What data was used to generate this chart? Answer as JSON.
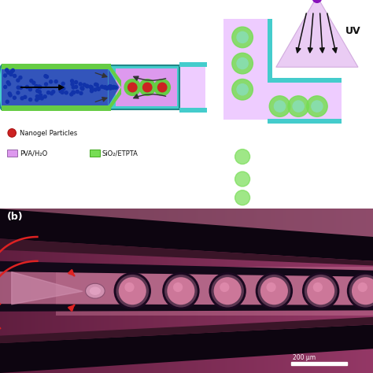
{
  "bg_color": "#ffffff",
  "tube_outer_color": "#44cccc",
  "tube_inner_blue": "#3355bb",
  "blue_dot_color": "#1133aa",
  "green_coat_color": "#66cc44",
  "sheath_pink": "#dd99ee",
  "sheath_pink_light": "#eeccff",
  "channel_pink": "#cc88dd",
  "cyan_border": "#44cccc",
  "red_droplet": "#cc2222",
  "green_droplet_outer": "#77dd55",
  "green_droplet_mid": "#55bb33",
  "uv_cone_color": "#ddaaee",
  "uv_label": "UV",
  "arrow_color": "#222222",
  "nanogel_color": "#cc2222",
  "pva_color": "#dd99ee",
  "sio2_color": "#77dd55",
  "nanogel_label": "Nanogel Particles",
  "pva_label": "PVA/H₂O",
  "sio2_label": "SiO₂/ETPTA",
  "panel_b_label": "(b)",
  "scale_label": "200 μm",
  "photo_bg": "#7a3060",
  "photo_bg2": "#aa6688",
  "photo_tube_dark": "#100510",
  "photo_pink": "#cc7799",
  "photo_pink_bright": "#dd88aa"
}
